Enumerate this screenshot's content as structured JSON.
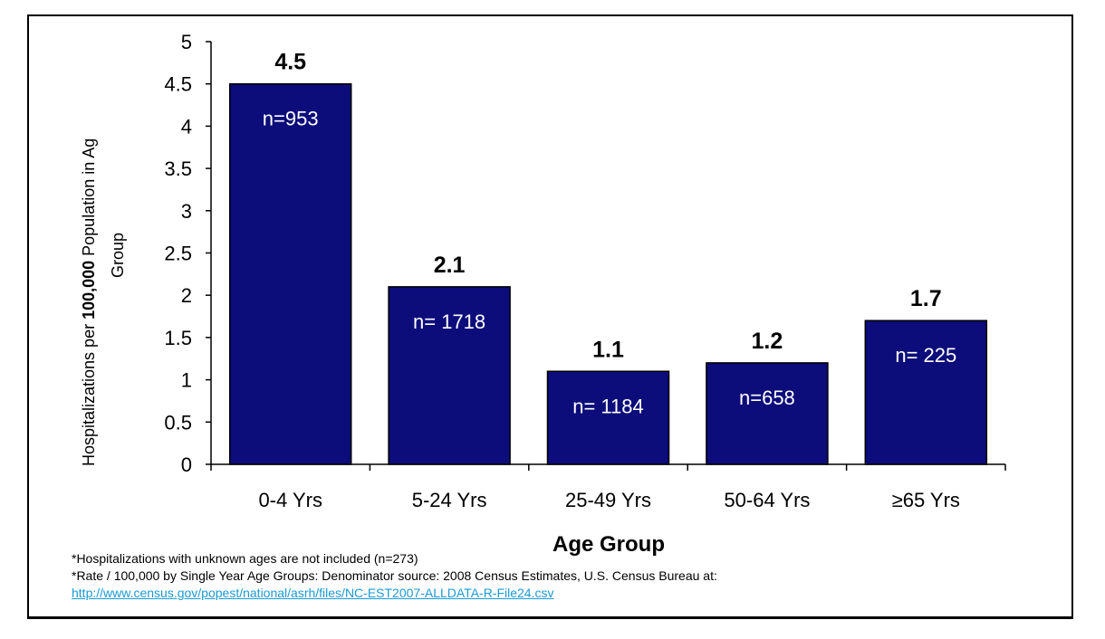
{
  "chart_data": {
    "type": "bar",
    "categories": [
      "0-4 Yrs",
      "5-24 Yrs",
      "25-49 Yrs",
      "50-64 Yrs",
      "≥65 Yrs"
    ],
    "values": [
      4.5,
      2.1,
      1.1,
      1.2,
      1.7
    ],
    "value_labels": [
      "4.5",
      "2.1",
      "1.1",
      "1.2",
      "1.7"
    ],
    "n_labels": [
      "n=953",
      "n= 1718",
      "n= 1184",
      "n=658",
      "n= 225"
    ],
    "y_ticks": [
      0,
      0.5,
      1,
      1.5,
      2,
      2.5,
      3,
      3.5,
      4,
      4.5,
      5
    ],
    "y_tick_labels": [
      "0",
      "0.5",
      "1",
      "1.5",
      "2",
      "2.5",
      "3",
      "3.5",
      "4",
      "4.5",
      "5"
    ],
    "ylim": [
      0,
      5
    ],
    "xlabel": "Age Group",
    "ylabel_part1": "Hospitalizations per ",
    "ylabel_bold": "100,000",
    "ylabel_part2": "  Population in Ag",
    "ylabel_line2": "Group",
    "bar_color": "#0c0c7a",
    "grid": false,
    "legend": "none"
  },
  "footnotes": {
    "line1": "*Hospitalizations with unknown ages are not included (n=273)",
    "line2": "*Rate / 100,000 by Single Year Age Groups: Denominator source: 2008 Census Estimates, U.S. Census Bureau at:",
    "link": "http://www.census.gov/popest/national/asrh/files/NC-EST2007-ALLDATA-R-File24.csv"
  }
}
